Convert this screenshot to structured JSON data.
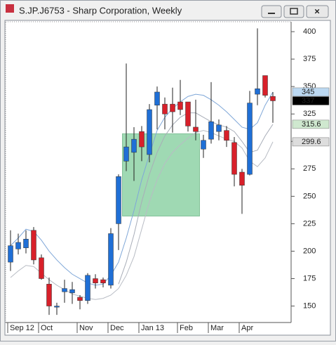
{
  "window": {
    "title": "S.JP.J6753 - Sharp Corporation, Weekly"
  },
  "chart_data": {
    "type": "candlestick",
    "categories": [
      "Sep 12",
      null,
      null,
      null,
      "Oct",
      null,
      null,
      null,
      null,
      "Nov",
      null,
      null,
      null,
      "Dec",
      null,
      null,
      null,
      "Jan 13",
      null,
      null,
      null,
      null,
      "Feb",
      null,
      null,
      null,
      "Mar",
      null,
      null,
      null,
      "Apr",
      null,
      null,
      null,
      null
    ],
    "open": [
      190,
      202,
      203,
      219,
      194,
      170,
      149,
      163,
      162,
      158,
      155,
      175,
      174,
      169,
      225,
      282,
      290,
      309,
      288,
      333,
      334,
      334,
      336,
      336,
      313,
      293,
      302,
      309,
      310,
      299,
      272,
      270,
      343,
      360,
      341
    ],
    "high": [
      219,
      216,
      219,
      222,
      197,
      176,
      153,
      174,
      172,
      160,
      180,
      179,
      176,
      221,
      270,
      371,
      313,
      314,
      334,
      350,
      340,
      349,
      356,
      336,
      338,
      306,
      354,
      320,
      314,
      304,
      275,
      346,
      403,
      360,
      345
    ],
    "low": [
      182,
      197,
      198,
      188,
      174,
      142,
      142,
      153,
      152,
      147,
      152,
      166,
      167,
      166,
      201,
      273,
      264,
      282,
      281,
      311,
      311,
      308,
      324,
      309,
      301,
      285,
      298,
      301,
      295,
      259,
      234,
      269,
      333,
      340,
      317
    ],
    "close": [
      205,
      208,
      211,
      192,
      175,
      150,
      150,
      166,
      165,
      155,
      178,
      171,
      171,
      216,
      268,
      295,
      302,
      295,
      329,
      345,
      325,
      327,
      329,
      314,
      309,
      301,
      318,
      315,
      301,
      270,
      260,
      335,
      348,
      342,
      337
    ],
    "up_color": "#1f6fd6",
    "down_color": "#d8202a",
    "lines": [
      {
        "color": "#7fa7d8",
        "values": [
          205,
          212,
          220,
          218,
          210,
          200,
          192,
          185,
          179,
          175,
          171,
          169,
          170,
          178,
          190,
          212,
          237,
          265,
          288,
          310,
          322,
          330,
          336,
          341,
          343,
          342,
          338,
          333,
          327,
          320,
          313,
          311,
          317,
          333,
          345
        ]
      },
      {
        "color": "#a8adb8",
        "values": [
          null,
          null,
          null,
          null,
          null,
          null,
          null,
          null,
          null,
          null,
          null,
          null,
          null,
          null,
          170,
          190,
          215,
          245,
          270,
          290,
          305,
          315,
          322,
          326,
          326,
          322,
          318,
          315,
          313,
          309,
          300,
          290,
          292,
          305,
          315.6
        ]
      },
      {
        "color": "#b8bcc4",
        "values": [
          176,
          182,
          187,
          186,
          180,
          174,
          169,
          165,
          161,
          159,
          157,
          156,
          157,
          160,
          166,
          178,
          195,
          220,
          245,
          265,
          280,
          290,
          297,
          303,
          308,
          310,
          308,
          305,
          302,
          300,
          294,
          282,
          277,
          285,
          299.6
        ]
      }
    ],
    "price_labels": [
      {
        "value": 345,
        "color": "#bcd9f2",
        "text_color": "#000000"
      },
      {
        "value": 337,
        "color": "#000000",
        "text_color": "#ffffff"
      },
      {
        "value": 315.6,
        "color": "#cfe8cf",
        "text_color": "#000000"
      },
      {
        "value": 299.6,
        "color": "#dddddd",
        "text_color": "#000000"
      }
    ],
    "highlight": {
      "x": [
        14.5,
        24.5
      ],
      "y": [
        232,
        307
      ],
      "color": "#8fd3a6"
    },
    "ylim": [
      135,
      409
    ],
    "yticks": [
      150,
      175,
      200,
      225,
      250,
      275,
      300,
      325,
      350,
      375,
      400
    ],
    "grid": false
  }
}
